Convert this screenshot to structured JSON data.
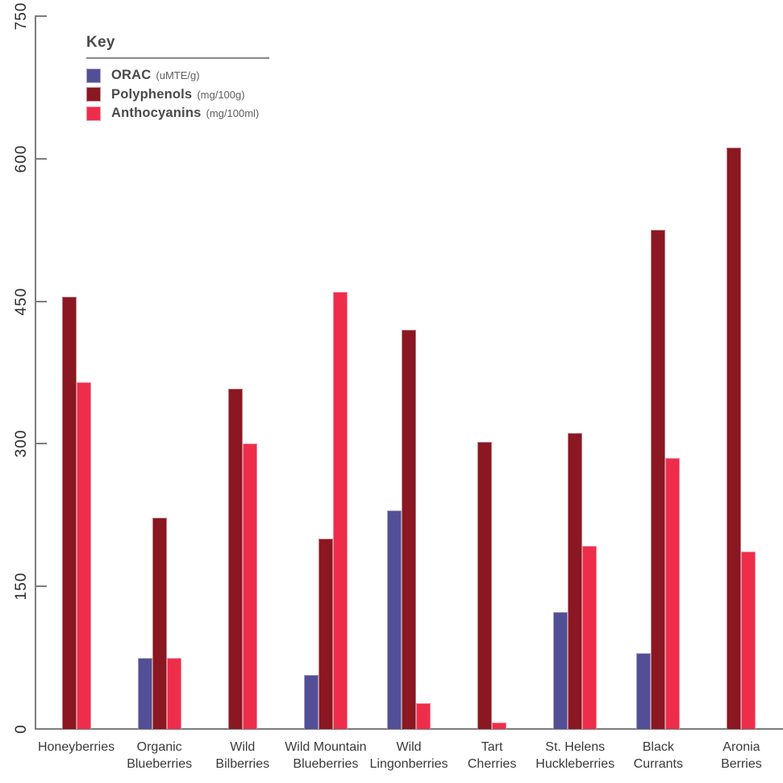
{
  "chart_data": {
    "type": "bar",
    "title": "",
    "legend_title": "Key",
    "legend_position": "top-left-inside",
    "grid": false,
    "ylim": [
      0,
      750
    ],
    "yticks": [
      0,
      150,
      300,
      450,
      600,
      750
    ],
    "categories": [
      "Honeyberries",
      "Organic\nBlueberries",
      "Wild\nBilberries",
      "Wild Mountain\nBlueberries",
      "Wild\nLingonberries",
      "Tart\nCherries",
      "St. Helens\nHuckleberries",
      "Black\nCurrants",
      "Aronia\nBerries"
    ],
    "series": [
      {
        "name": "ORAC",
        "unit": "(uMTE/g)",
        "color": "#534F96",
        "values": [
          null,
          75,
          null,
          57,
          230,
          null,
          123,
          80,
          null
        ]
      },
      {
        "name": "Polyphenols",
        "unit": "(mg/100g)",
        "color": "#8A1721",
        "values": [
          455,
          222,
          358,
          200,
          420,
          302,
          311,
          525,
          612
        ]
      },
      {
        "name": "Anthocyanins",
        "unit": "(mg/100ml)",
        "color": "#EE2D4B",
        "values": [
          365,
          75,
          300,
          460,
          27,
          7,
          193,
          285,
          187
        ]
      }
    ],
    "colors": {
      "axis": "#7d7d7d",
      "ytick_text": "#2d2d2d",
      "xtick_text": "#3a3a3a",
      "legend_text": "#4a4a4a"
    }
  }
}
